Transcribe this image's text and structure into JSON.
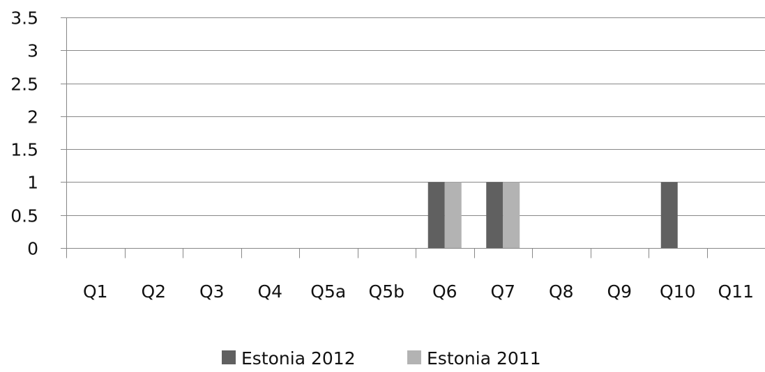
{
  "chart_data": {
    "type": "bar",
    "title": "",
    "xlabel": "",
    "ylabel": "",
    "categories": [
      "Q1",
      "Q2",
      "Q3",
      "Q4",
      "Q5a",
      "Q5b",
      "Q6",
      "Q7",
      "Q8",
      "Q9",
      "Q10",
      "Q11"
    ],
    "series": [
      {
        "name": "Estonia 2012",
        "color": "#606060",
        "values": [
          0,
          0,
          0,
          0,
          0,
          0,
          1,
          1,
          0,
          0,
          1,
          0
        ]
      },
      {
        "name": "Estonia 2011",
        "color": "#b3b3b3",
        "values": [
          0,
          0,
          0,
          0,
          0,
          0,
          1,
          1,
          0,
          0,
          0,
          0
        ]
      }
    ],
    "ylim": [
      0,
      3.5
    ],
    "yticks": [
      "0",
      "0.5",
      "1",
      "1.5",
      "2",
      "2.5",
      "3",
      "3.5"
    ],
    "grid": true,
    "legend_position": "bottom",
    "gridline_color": "#878787",
    "axis_color": "#878787"
  }
}
